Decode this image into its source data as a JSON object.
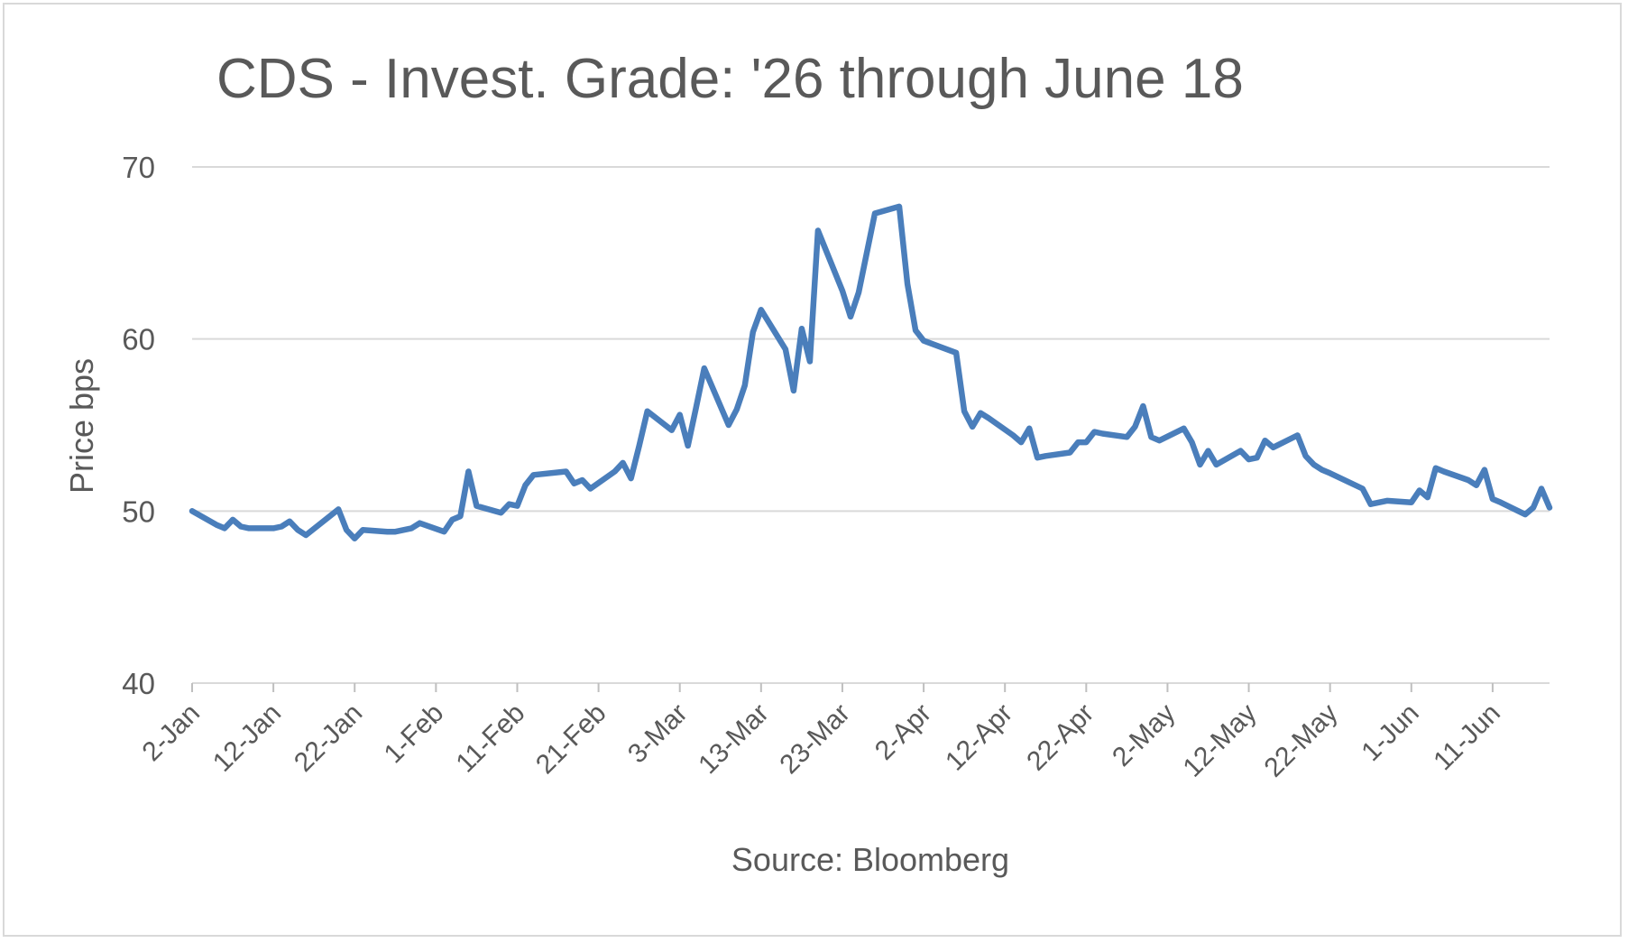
{
  "chart_data": {
    "type": "line",
    "title": "CDS - Invest. Grade: '26 through June 18",
    "xlabel": "Source: Bloomberg",
    "ylabel": "Price bps",
    "ylim": [
      40,
      70
    ],
    "yticks": [
      "40",
      "50",
      "60",
      "70"
    ],
    "xticks": [
      "2-Jan",
      "12-Jan",
      "22-Jan",
      "1-Feb",
      "11-Feb",
      "21-Feb",
      "3-Mar",
      "13-Mar",
      "23-Mar",
      "2-Apr",
      "12-Apr",
      "22-Apr",
      "2-May",
      "12-May",
      "22-May",
      "1-Jun",
      "11-Jun"
    ],
    "xrange": [
      "2026-01-02",
      "2026-06-18"
    ],
    "grid": true,
    "legend": "none",
    "series": [
      {
        "color": "#4a7ebb",
        "x": [
          "2026-01-02",
          "2026-01-05",
          "2026-01-06",
          "2026-01-07",
          "2026-01-08",
          "2026-01-09",
          "2026-01-12",
          "2026-01-13",
          "2026-01-14",
          "2026-01-15",
          "2026-01-16",
          "2026-01-20",
          "2026-01-21",
          "2026-01-22",
          "2026-01-23",
          "2026-01-26",
          "2026-01-27",
          "2026-01-28",
          "2026-01-29",
          "2026-01-30",
          "2026-02-02",
          "2026-02-03",
          "2026-02-04",
          "2026-02-05",
          "2026-02-06",
          "2026-02-09",
          "2026-02-10",
          "2026-02-11",
          "2026-02-12",
          "2026-02-13",
          "2026-02-17",
          "2026-02-18",
          "2026-02-19",
          "2026-02-20",
          "2026-02-23",
          "2026-02-24",
          "2026-02-25",
          "2026-02-26",
          "2026-02-27",
          "2026-03-02",
          "2026-03-03",
          "2026-03-04",
          "2026-03-05",
          "2026-03-06",
          "2026-03-09",
          "2026-03-10",
          "2026-03-11",
          "2026-03-12",
          "2026-03-13",
          "2026-03-16",
          "2026-03-17",
          "2026-03-18",
          "2026-03-19",
          "2026-03-20",
          "2026-03-23",
          "2026-03-24",
          "2026-03-25",
          "2026-03-26",
          "2026-03-27",
          "2026-03-30",
          "2026-03-31",
          "2026-04-01",
          "2026-04-02",
          "2026-04-06",
          "2026-04-07",
          "2026-04-08",
          "2026-04-09",
          "2026-04-10",
          "2026-04-13",
          "2026-04-14",
          "2026-04-15",
          "2026-04-16",
          "2026-04-17",
          "2026-04-20",
          "2026-04-21",
          "2026-04-22",
          "2026-04-23",
          "2026-04-24",
          "2026-04-27",
          "2026-04-28",
          "2026-04-29",
          "2026-04-30",
          "2026-05-01",
          "2026-05-04",
          "2026-05-05",
          "2026-05-06",
          "2026-05-07",
          "2026-05-08",
          "2026-05-11",
          "2026-05-12",
          "2026-05-13",
          "2026-05-14",
          "2026-05-15",
          "2026-05-18",
          "2026-05-19",
          "2026-05-20",
          "2026-05-21",
          "2026-05-22",
          "2026-05-26",
          "2026-05-27",
          "2026-05-28",
          "2026-05-29",
          "2026-06-01",
          "2026-06-02",
          "2026-06-03",
          "2026-06-04",
          "2026-06-05",
          "2026-06-08",
          "2026-06-09",
          "2026-06-10",
          "2026-06-11",
          "2026-06-12",
          "2026-06-15",
          "2026-06-16",
          "2026-06-17",
          "2026-06-18"
        ],
        "y": [
          50.0,
          49.2,
          49.0,
          49.5,
          49.1,
          49.0,
          49.0,
          49.1,
          49.4,
          48.9,
          48.6,
          50.1,
          48.9,
          48.4,
          48.9,
          48.8,
          48.8,
          48.9,
          49.0,
          49.3,
          48.8,
          49.5,
          49.7,
          52.3,
          50.3,
          49.9,
          50.4,
          50.3,
          51.5,
          52.1,
          52.3,
          51.6,
          51.8,
          51.3,
          52.3,
          52.8,
          51.9,
          53.8,
          55.8,
          54.7,
          55.6,
          53.8,
          56.0,
          58.3,
          55.0,
          55.9,
          57.3,
          60.4,
          61.7,
          59.4,
          57.0,
          60.6,
          58.7,
          66.3,
          62.8,
          61.3,
          62.7,
          65.0,
          67.3,
          67.7,
          63.2,
          60.5,
          59.9,
          59.2,
          55.8,
          54.9,
          55.7,
          55.4,
          54.4,
          54.0,
          54.8,
          53.1,
          53.2,
          53.4,
          54.0,
          54.0,
          54.6,
          54.5,
          54.3,
          54.9,
          56.1,
          54.3,
          54.1,
          54.8,
          54.0,
          52.7,
          53.5,
          52.7,
          53.5,
          53.0,
          53.1,
          54.1,
          53.7,
          54.4,
          53.2,
          52.7,
          52.4,
          52.2,
          51.3,
          50.4,
          50.5,
          50.6,
          50.5,
          51.2,
          50.8,
          52.5,
          52.3,
          51.8,
          51.5,
          52.4,
          50.7,
          50.5,
          49.8,
          50.2,
          51.3,
          50.2
        ]
      }
    ]
  }
}
